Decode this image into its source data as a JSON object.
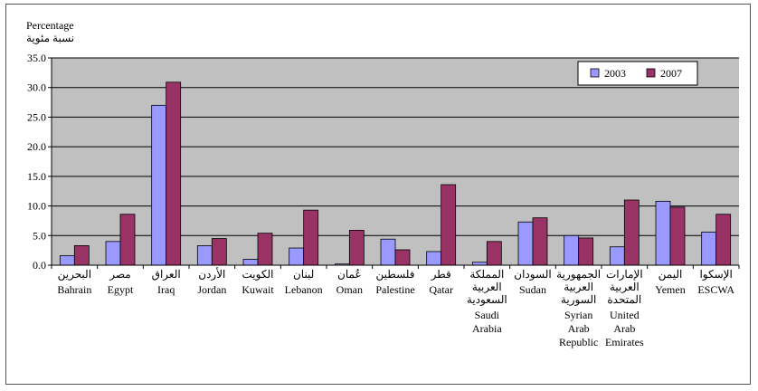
{
  "chart_data": {
    "type": "bar",
    "title": "",
    "ylabel_en": "Percentage",
    "ylabel_ar": "نسبة مئوية",
    "ylim": [
      0,
      35
    ],
    "yticks": [
      "0.0",
      "5.0",
      "10.0",
      "15.0",
      "20.0",
      "25.0",
      "30.0",
      "35.0"
    ],
    "grid": true,
    "legend_position": "top-right",
    "categories": [
      {
        "ar": [
          "البحرين"
        ],
        "en": [
          "Bahrain"
        ]
      },
      {
        "ar": [
          "مصر"
        ],
        "en": [
          "Egypt"
        ]
      },
      {
        "ar": [
          "العراق"
        ],
        "en": [
          "Iraq"
        ]
      },
      {
        "ar": [
          "الأردن"
        ],
        "en": [
          "Jordan"
        ]
      },
      {
        "ar": [
          "الكويت"
        ],
        "en": [
          "Kuwait"
        ]
      },
      {
        "ar": [
          "لبنان"
        ],
        "en": [
          "Lebanon"
        ]
      },
      {
        "ar": [
          "عُمان"
        ],
        "en": [
          "Oman"
        ]
      },
      {
        "ar": [
          "فلسطين"
        ],
        "en": [
          "Palestine"
        ]
      },
      {
        "ar": [
          "قطر"
        ],
        "en": [
          "Qatar"
        ]
      },
      {
        "ar": [
          "المملكة",
          "العربية",
          "السعودية"
        ],
        "en": [
          "Saudi",
          "Arabia"
        ]
      },
      {
        "ar": [
          "السودان"
        ],
        "en": [
          "Sudan"
        ]
      },
      {
        "ar": [
          "الجمهورية",
          "العربية",
          "السورية"
        ],
        "en": [
          "Syrian",
          "Arab",
          "Republic"
        ]
      },
      {
        "ar": [
          "الإمارات",
          "العربية",
          "المتحدة"
        ],
        "en": [
          "United",
          "Arab",
          "Emirates"
        ]
      },
      {
        "ar": [
          "اليمن"
        ],
        "en": [
          "Yemen"
        ]
      },
      {
        "ar": [
          "الإسكوا"
        ],
        "en": [
          "ESCWA"
        ]
      }
    ],
    "series": [
      {
        "name": "2003",
        "color": "#9999ff",
        "values": [
          1.6,
          4.0,
          27.0,
          3.3,
          1.0,
          2.9,
          0.2,
          4.4,
          2.3,
          0.5,
          7.3,
          5.0,
          3.1,
          10.8,
          5.6
        ]
      },
      {
        "name": "2007",
        "color": "#993366",
        "values": [
          3.3,
          8.6,
          30.9,
          4.5,
          5.4,
          9.3,
          5.9,
          2.6,
          13.6,
          4.0,
          8.0,
          4.6,
          11.0,
          9.8,
          8.6
        ]
      }
    ],
    "plot_background": "#c0c0c0"
  }
}
